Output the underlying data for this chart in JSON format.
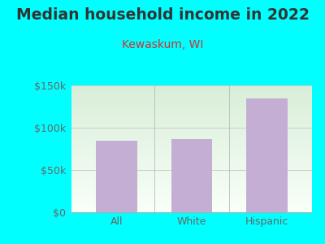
{
  "title": "Median household income in 2022",
  "subtitle": "Kewaskum, WI",
  "categories": [
    "All",
    "White",
    "Hispanic"
  ],
  "values": [
    85000,
    87000,
    135000
  ],
  "bar_color": "#c4aed4",
  "background_color": "#00FFFF",
  "plot_bg_top_left": "#d8edd8",
  "plot_bg_bottom": "#f8fff8",
  "plot_bg_right": "#f0f0f8",
  "title_color": "#333333",
  "subtitle_color": "#cc3333",
  "tick_label_color": "#666666",
  "ylim": [
    0,
    150000
  ],
  "yticks": [
    0,
    50000,
    100000,
    150000
  ],
  "ytick_labels": [
    "$0",
    "$50k",
    "$100k",
    "$150k"
  ],
  "title_fontsize": 13.5,
  "subtitle_fontsize": 10,
  "tick_fontsize": 9,
  "bar_width": 0.55,
  "grid_color": "#cccccc"
}
